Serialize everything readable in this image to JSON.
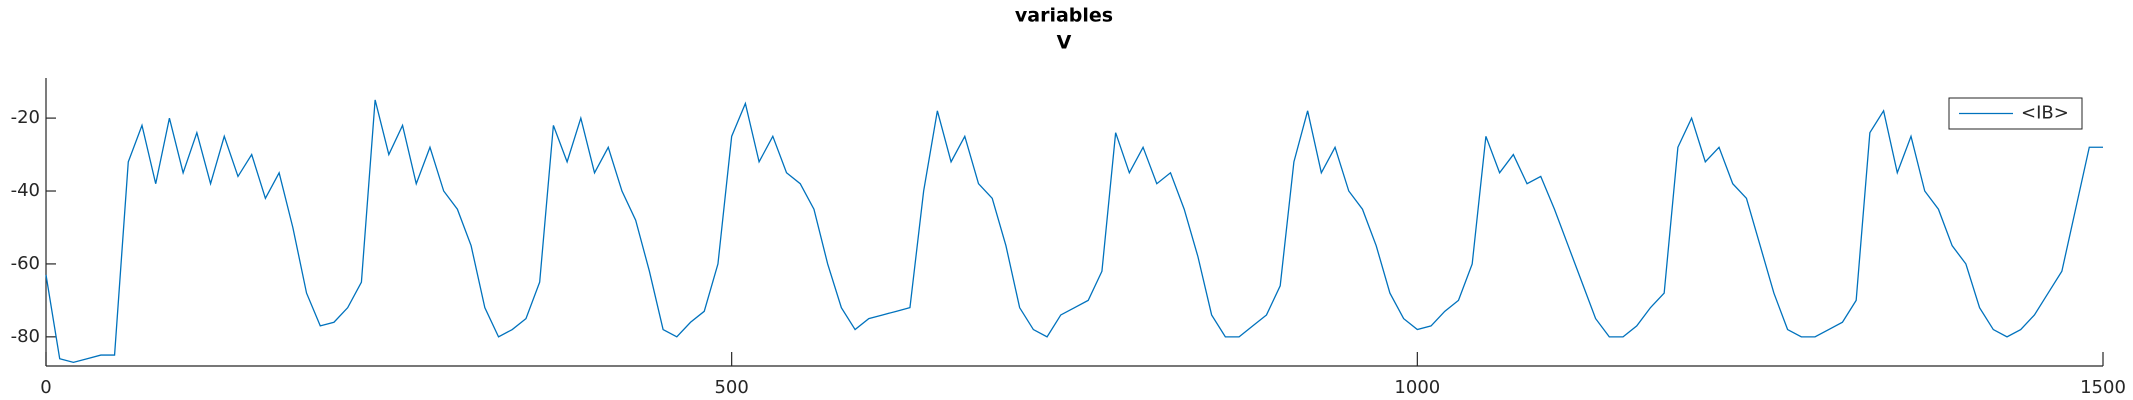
{
  "chart_data": {
    "type": "line",
    "title": "variables",
    "subtitle": "V",
    "x": [
      0,
      10,
      20,
      30,
      40,
      50,
      60,
      70,
      80,
      90,
      100,
      110,
      120,
      130,
      140,
      150,
      160,
      170,
      180,
      190,
      200,
      210,
      220,
      230,
      240,
      250,
      260,
      270,
      280,
      290,
      300,
      310,
      320,
      330,
      340,
      350,
      360,
      370,
      380,
      390,
      400,
      410,
      420,
      430,
      440,
      450,
      460,
      470,
      480,
      490,
      500,
      510,
      520,
      530,
      540,
      550,
      560,
      570,
      580,
      590,
      600,
      610,
      620,
      630,
      640,
      650,
      660,
      670,
      680,
      690,
      700,
      710,
      720,
      730,
      740,
      750,
      760,
      770,
      780,
      790,
      800,
      810,
      820,
      830,
      840,
      850,
      860,
      870,
      880,
      890,
      900,
      910,
      920,
      930,
      940,
      950,
      960,
      970,
      980,
      990,
      1000,
      1010,
      1020,
      1030,
      1040,
      1050,
      1060,
      1070,
      1080,
      1090,
      1100,
      1110,
      1120,
      1130,
      1140,
      1150,
      1160,
      1170,
      1180,
      1190,
      1200,
      1210,
      1220,
      1230,
      1240,
      1250,
      1260,
      1270,
      1280,
      1290,
      1300,
      1310,
      1320,
      1330,
      1340,
      1350,
      1360,
      1370,
      1380,
      1390,
      1400,
      1410,
      1420,
      1430,
      1440,
      1450,
      1460,
      1470,
      1480,
      1490,
      1500
    ],
    "series": [
      {
        "name": "<IB>",
        "color": "#0072bd",
        "values": [
          -63,
          -86,
          -87,
          -86,
          -85,
          -85,
          -32,
          -22,
          -38,
          -20,
          -35,
          -24,
          -38,
          -25,
          -36,
          -30,
          -42,
          -35,
          -50,
          -68,
          -77,
          -76,
          -72,
          -65,
          -15,
          -30,
          -22,
          -38,
          -28,
          -40,
          -45,
          -55,
          -72,
          -80,
          -78,
          -75,
          -65,
          -22,
          -32,
          -20,
          -35,
          -28,
          -40,
          -48,
          -62,
          -78,
          -80,
          -76,
          -73,
          -60,
          -25,
          -16,
          -32,
          -25,
          -35,
          -38,
          -45,
          -60,
          -72,
          -78,
          -75,
          -74,
          -73,
          -72,
          -40,
          -18,
          -32,
          -25,
          -38,
          -42,
          -55,
          -72,
          -78,
          -80,
          -74,
          -72,
          -70,
          -62,
          -24,
          -35,
          -28,
          -38,
          -35,
          -45,
          -58,
          -74,
          -80,
          -80,
          -77,
          -74,
          -66,
          -32,
          -18,
          -35,
          -28,
          -40,
          -45,
          -55,
          -68,
          -75,
          -78,
          -77,
          -73,
          -70,
          -60,
          -25,
          -35,
          -30,
          -38,
          -36,
          -45,
          -55,
          -65,
          -75,
          -80,
          -80,
          -77,
          -72,
          -68,
          -28,
          -20,
          -32,
          -28,
          -38,
          -42,
          -55,
          -68,
          -78,
          -80,
          -80,
          -78,
          -76,
          -70,
          -24,
          -18,
          -35,
          -25,
          -40,
          -45,
          -55,
          -60,
          -72,
          -78,
          -80,
          -78,
          -74,
          -68,
          -62,
          -45,
          -28,
          -28
        ]
      }
    ],
    "xlim": [
      0,
      1500
    ],
    "xticks": [
      0,
      500,
      1000,
      1500
    ],
    "ylim": [
      -88,
      -9
    ],
    "yticks": [
      -80,
      -60,
      -40,
      -20
    ],
    "legend": "northeast"
  }
}
